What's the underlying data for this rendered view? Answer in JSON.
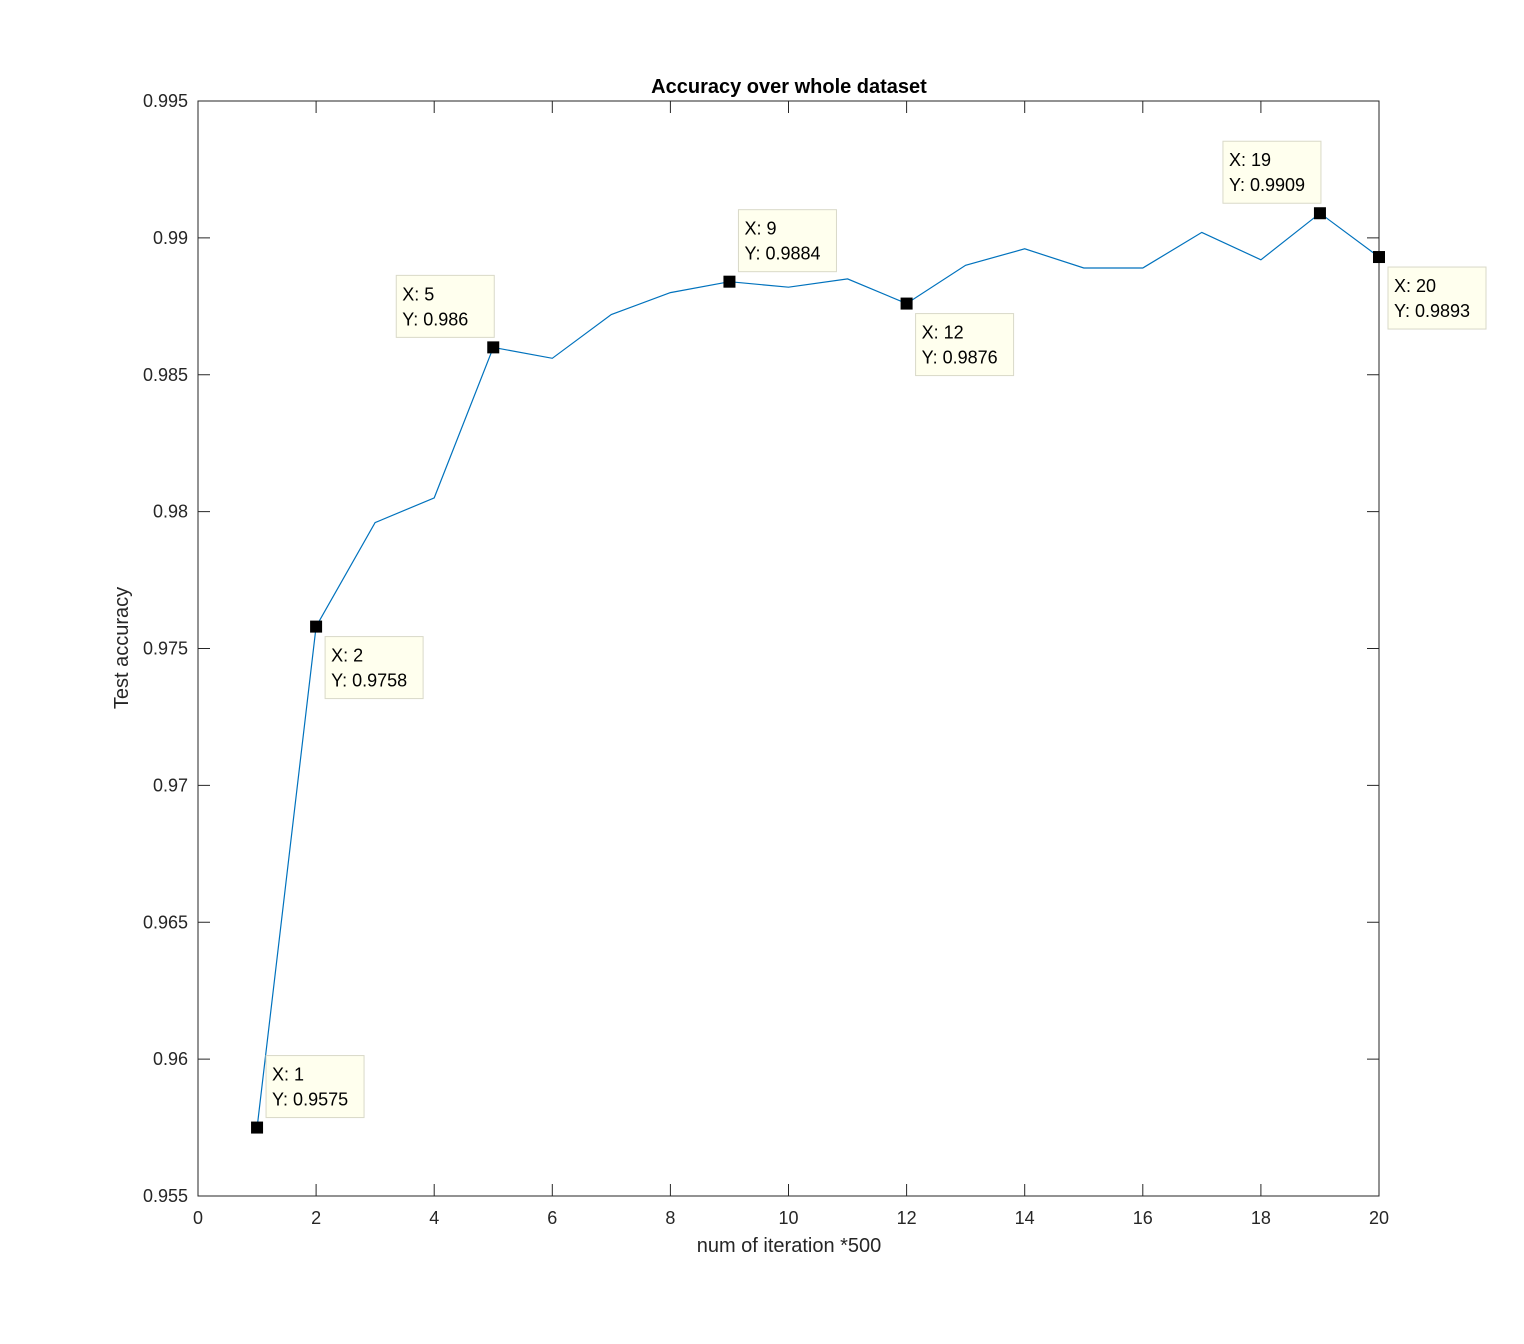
{
  "chart_data": {
    "type": "line",
    "title": "Accuracy over whole dataset",
    "xlabel": "num of iteration *500",
    "ylabel": "Test accuracy",
    "xlim": [
      0,
      20
    ],
    "ylim": [
      0.955,
      0.995
    ],
    "xticks": [
      "0",
      "2",
      "4",
      "6",
      "8",
      "10",
      "12",
      "14",
      "16",
      "18",
      "20"
    ],
    "yticks": [
      "0.955",
      "0.96",
      "0.965",
      "0.97",
      "0.975",
      "0.98",
      "0.985",
      "0.99",
      "0.995"
    ],
    "grid": false,
    "series_color": "#0072BD",
    "x": [
      1,
      2,
      3,
      4,
      5,
      6,
      7,
      8,
      9,
      10,
      11,
      12,
      13,
      14,
      15,
      16,
      17,
      18,
      19,
      20
    ],
    "y": [
      0.9575,
      0.9758,
      0.9796,
      0.9805,
      0.986,
      0.9856,
      0.9872,
      0.988,
      0.9884,
      0.9882,
      0.9885,
      0.9876,
      0.989,
      0.9896,
      0.9889,
      0.9889,
      0.9902,
      0.9892,
      0.9909,
      0.9893
    ],
    "datatips": [
      {
        "x": 1,
        "y": 0.9575,
        "line1": "X: 1",
        "line2": "Y: 0.9575",
        "placement": "upper-right"
      },
      {
        "x": 2,
        "y": 0.9758,
        "line1": "X: 2",
        "line2": "Y: 0.9758",
        "placement": "lower-right"
      },
      {
        "x": 5,
        "y": 0.986,
        "line1": "X: 5",
        "line2": "Y: 0.986",
        "placement": "upper-left"
      },
      {
        "x": 9,
        "y": 0.9884,
        "line1": "X: 9",
        "line2": "Y: 0.9884",
        "placement": "upper-right"
      },
      {
        "x": 12,
        "y": 0.9876,
        "line1": "X: 12",
        "line2": "Y: 0.9876",
        "placement": "lower-right"
      },
      {
        "x": 19,
        "y": 0.9909,
        "line1": "X: 19",
        "line2": "Y: 0.9909",
        "placement": "upper-left"
      },
      {
        "x": 20,
        "y": 0.9893,
        "line1": "X: 20",
        "line2": "Y: 0.9893",
        "placement": "lower-right"
      }
    ]
  }
}
